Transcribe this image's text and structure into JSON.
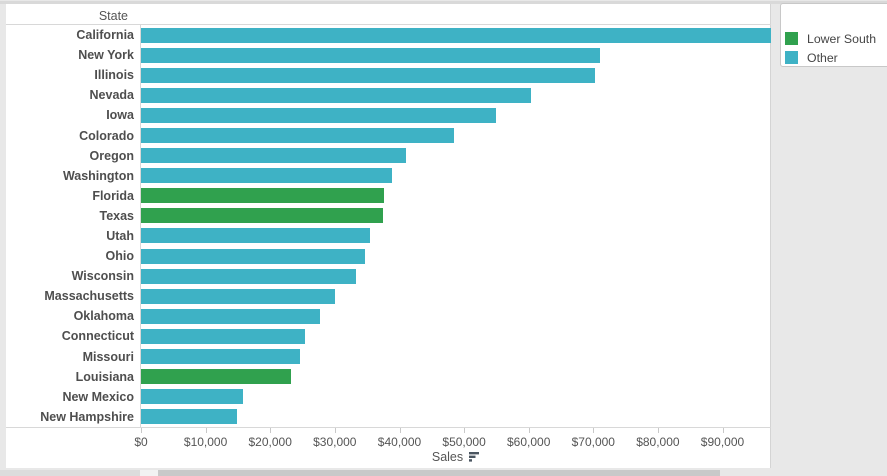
{
  "header": {
    "column_label": "State"
  },
  "axis": {
    "label": "Sales",
    "ticks": [
      {
        "label": "$0",
        "value": 0
      },
      {
        "label": "$10,000",
        "value": 10000
      },
      {
        "label": "$20,000",
        "value": 20000
      },
      {
        "label": "$30,000",
        "value": 30000
      },
      {
        "label": "$40,000",
        "value": 40000
      },
      {
        "label": "$50,000",
        "value": 50000
      },
      {
        "label": "$60,000",
        "value": 60000
      },
      {
        "label": "$70,000",
        "value": 70000
      },
      {
        "label": "$80,000",
        "value": 80000
      },
      {
        "label": "$90,000",
        "value": 90000
      }
    ]
  },
  "legend": {
    "items": [
      {
        "label": "Lower South",
        "color": "#30A14E"
      },
      {
        "label": "Other",
        "color": "#3EB2C5"
      }
    ]
  },
  "chart_data": {
    "type": "bar",
    "orientation": "horizontal",
    "title": "",
    "xlabel": "Sales",
    "ylabel": "State",
    "xlim": [
      0,
      97500
    ],
    "x_tick_interval": 10000,
    "grid": false,
    "legend_position": "top-right",
    "sort": "descending by Sales",
    "categories": [
      "California",
      "New York",
      "Illinois",
      "Nevada",
      "Iowa",
      "Colorado",
      "Oregon",
      "Washington",
      "Florida",
      "Texas",
      "Utah",
      "Ohio",
      "Wisconsin",
      "Massachusetts",
      "Oklahoma",
      "Connecticut",
      "Missouri",
      "Louisiana",
      "New Mexico",
      "New Hampshire"
    ],
    "values": [
      97500,
      71100,
      70200,
      60300,
      54900,
      48400,
      41000,
      38900,
      37600,
      37400,
      35400,
      34600,
      33200,
      30000,
      27700,
      25300,
      24600,
      23200,
      15800,
      14800
    ],
    "groups": [
      "Other",
      "Other",
      "Other",
      "Other",
      "Other",
      "Other",
      "Other",
      "Other",
      "Lower South",
      "Lower South",
      "Other",
      "Other",
      "Other",
      "Other",
      "Other",
      "Other",
      "Other",
      "Lower South",
      "Other",
      "Other"
    ],
    "series": [
      {
        "name": "Lower South",
        "color": "#30A14E"
      },
      {
        "name": "Other",
        "color": "#3EB2C5"
      }
    ]
  }
}
